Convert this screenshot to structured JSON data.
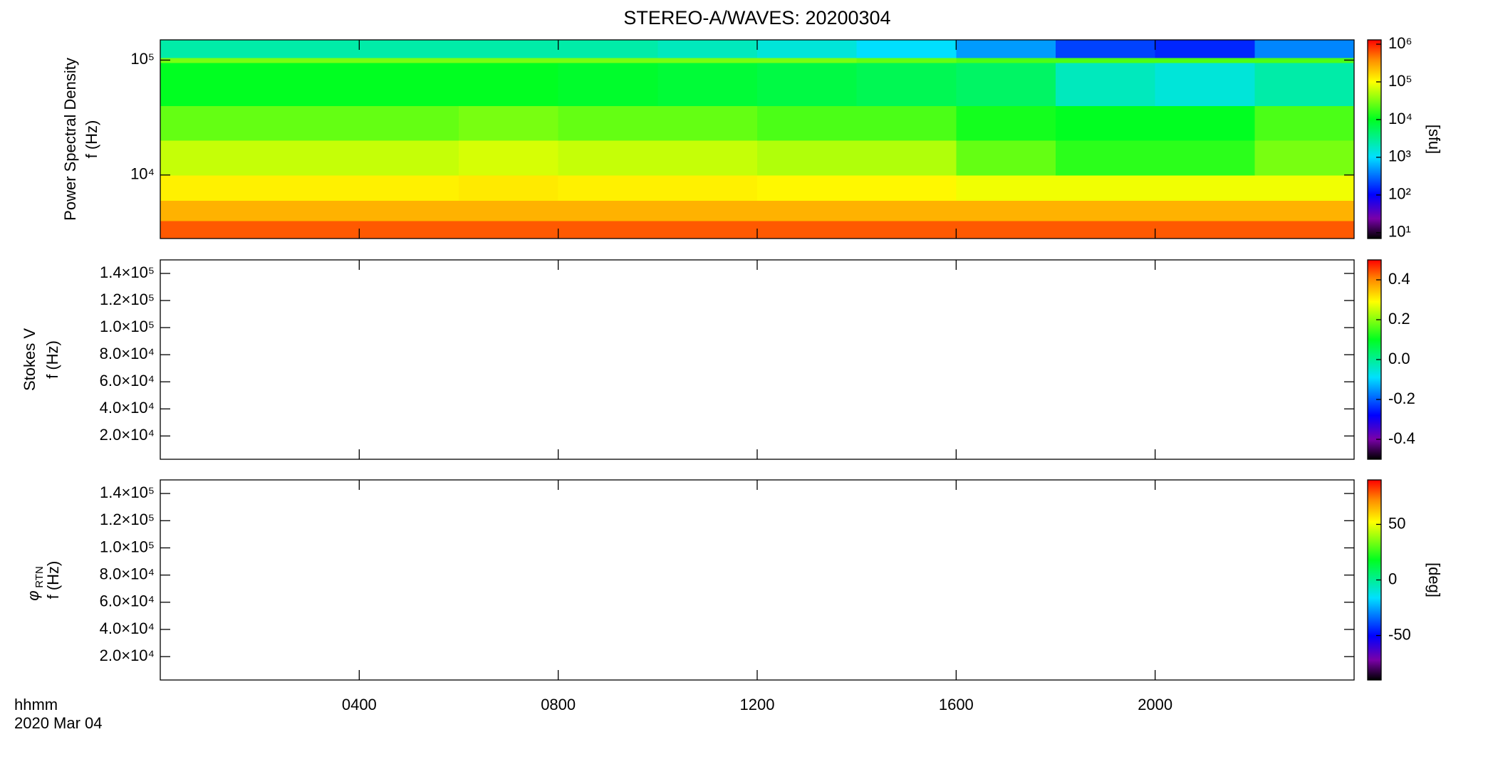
{
  "chart_data": [
    {
      "type": "heatmap",
      "title": "STEREO-A/WAVES: 20200304",
      "ylabel": [
        "Power Spectral Density",
        "f (Hz)"
      ],
      "ylog": true,
      "ylim": [
        2800,
        150000
      ],
      "yticks": [
        {
          "value": 10000,
          "label": "10⁴"
        },
        {
          "value": 100000,
          "label": "10⁵"
        }
      ],
      "x": [
        0,
        2,
        4,
        6,
        8,
        10,
        12,
        14,
        16,
        18,
        20,
        22,
        24
      ],
      "y": [
        2800,
        4000,
        6000,
        10000,
        20000,
        40000,
        95000,
        105000,
        150000
      ],
      "z": [
        [
          600000,
          600000,
          600000,
          600000,
          600000,
          600000,
          600000,
          600000,
          600000,
          600000,
          600000,
          600000
        ],
        [
          250000,
          250000,
          250000,
          250000,
          250000,
          250000,
          250000,
          250000,
          250000,
          250000,
          250000,
          250000
        ],
        [
          120000,
          120000,
          120000,
          130000,
          120000,
          120000,
          110000,
          110000,
          90000,
          90000,
          90000,
          90000
        ],
        [
          60000,
          60000,
          60000,
          70000,
          60000,
          60000,
          50000,
          50000,
          25000,
          15000,
          15000,
          30000
        ],
        [
          25000,
          25000,
          25000,
          30000,
          25000,
          25000,
          20000,
          20000,
          12000,
          10000,
          10000,
          20000
        ],
        [
          10000,
          10000,
          10000,
          10000,
          9000,
          8000,
          7000,
          6000,
          5000,
          2000,
          1500,
          2500
        ],
        [
          30000,
          30000,
          30000,
          30000,
          30000,
          30000,
          30000,
          25000,
          20000,
          20000,
          20000,
          20000
        ],
        [
          2500,
          2500,
          2500,
          2500,
          2500,
          2000,
          1500,
          1000,
          500,
          200,
          150,
          400
        ]
      ],
      "clog": true,
      "clim": [
        7,
        1300000
      ],
      "cticks": [
        {
          "value": 10,
          "label": "10¹"
        },
        {
          "value": 100,
          "label": "10²"
        },
        {
          "value": 1000,
          "label": "10³"
        },
        {
          "value": 10000,
          "label": "10⁴"
        },
        {
          "value": 100000,
          "label": "10⁵"
        },
        {
          "value": 1000000,
          "label": "10⁶"
        }
      ],
      "clabel": "[sfu]",
      "colormap": [
        {
          "at": 0,
          "color": "#000000"
        },
        {
          "at": 0.1,
          "color": "#7a00a8"
        },
        {
          "at": 0.22,
          "color": "#0000ff"
        },
        {
          "at": 0.41,
          "color": "#00e0ff"
        },
        {
          "at": 0.6,
          "color": "#00ff20"
        },
        {
          "at": 0.79,
          "color": "#ffff00"
        },
        {
          "at": 0.9,
          "color": "#ff8c00"
        },
        {
          "at": 1,
          "color": "#ff0000"
        }
      ]
    },
    {
      "type": "heatmap",
      "ylabel": [
        "Stokes V",
        "f (Hz)"
      ],
      "ylim": [
        2800,
        150000
      ],
      "yticks": [
        {
          "value": 20000,
          "label": "2.0×10⁴"
        },
        {
          "value": 40000,
          "label": "4.0×10⁴"
        },
        {
          "value": 60000,
          "label": "6.0×10⁴"
        },
        {
          "value": 80000,
          "label": "8.0×10⁴"
        },
        {
          "value": 100000,
          "label": "1.0×10⁵"
        },
        {
          "value": 120000,
          "label": "1.2×10⁵"
        },
        {
          "value": 140000,
          "label": "1.4×10⁵"
        }
      ],
      "clim": [
        -0.5,
        0.5
      ],
      "cticks": [
        -0.4,
        -0.2,
        {
          "value": 0,
          "label": "0.0"
        },
        0.2,
        0.4
      ],
      "colormap": [
        {
          "at": 0,
          "color": "#000000"
        },
        {
          "at": 0.1,
          "color": "#7a00a8"
        },
        {
          "at": 0.22,
          "color": "#0000ff"
        },
        {
          "at": 0.41,
          "color": "#00e0ff"
        },
        {
          "at": 0.6,
          "color": "#00ff20"
        },
        {
          "at": 0.79,
          "color": "#ffff00"
        },
        {
          "at": 0.9,
          "color": "#ff8c00"
        },
        {
          "at": 1,
          "color": "#ff0000"
        }
      ]
    },
    {
      "type": "heatmap",
      "ylabel": [
        "φ",
        "f (Hz)"
      ],
      "ylabel_subscript": "RTN",
      "ylim": [
        2800,
        150000
      ],
      "yticks": [
        {
          "value": 20000,
          "label": "2.0×10⁴"
        },
        {
          "value": 40000,
          "label": "4.0×10⁴"
        },
        {
          "value": 60000,
          "label": "6.0×10⁴"
        },
        {
          "value": 80000,
          "label": "8.0×10⁴"
        },
        {
          "value": 100000,
          "label": "1.0×10⁵"
        },
        {
          "value": 120000,
          "label": "1.2×10⁵"
        },
        {
          "value": 140000,
          "label": "1.4×10⁵"
        }
      ],
      "clim": [
        -90,
        90
      ],
      "cticks": [
        -50,
        0,
        50
      ],
      "clabel": "[deg]",
      "colormap": [
        {
          "at": 0,
          "color": "#000000"
        },
        {
          "at": 0.1,
          "color": "#7a00a8"
        },
        {
          "at": 0.22,
          "color": "#0000ff"
        },
        {
          "at": 0.41,
          "color": "#00e0ff"
        },
        {
          "at": 0.6,
          "color": "#00ff20"
        },
        {
          "at": 0.79,
          "color": "#ffff00"
        },
        {
          "at": 0.9,
          "color": "#ff8c00"
        },
        {
          "at": 1,
          "color": "#ff0000"
        }
      ],
      "xlim": [
        0,
        24
      ],
      "xticks": [
        {
          "value": 4,
          "label": "0400"
        },
        {
          "value": 8,
          "label": "0800"
        },
        {
          "value": 12,
          "label": "1200"
        },
        {
          "value": 16,
          "label": "1600"
        },
        {
          "value": 20,
          "label": "2000"
        }
      ],
      "xlabel": [
        "hhmm",
        "2020 Mar 04"
      ]
    }
  ]
}
